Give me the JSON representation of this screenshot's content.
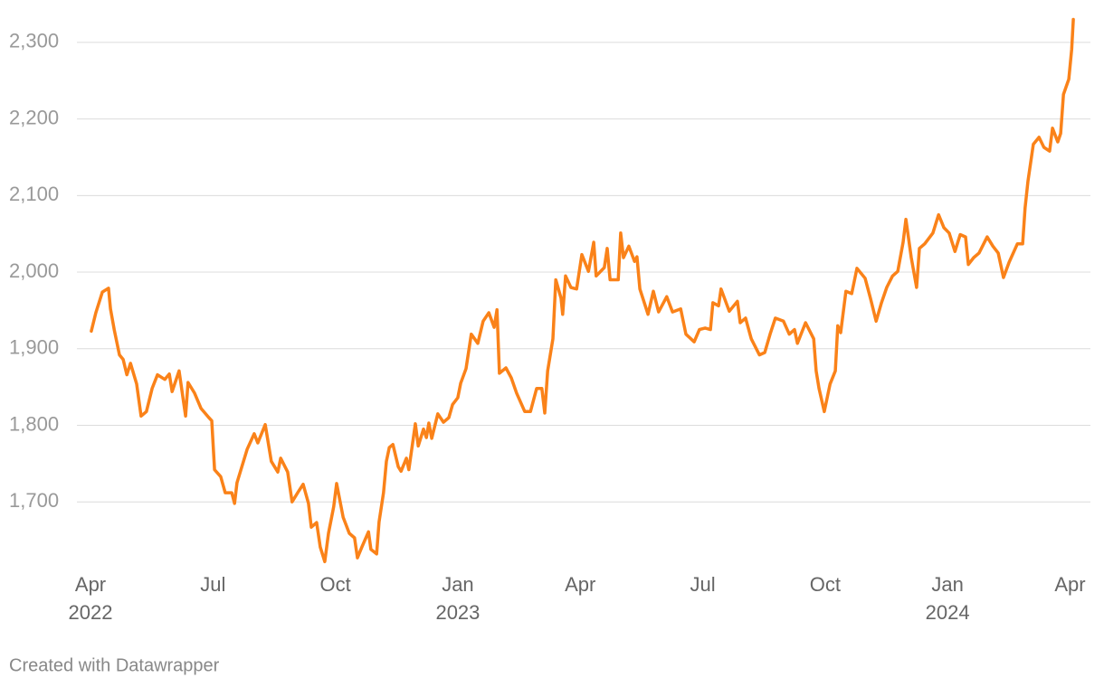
{
  "chart_data": {
    "type": "line",
    "footer": "Created with Datawrapper",
    "color": "#fa8219",
    "grid": true,
    "xlim": [
      -0.333,
      24.5
    ],
    "xticks": [
      {
        "value": 0,
        "label": "Apr",
        "sublabel": "2022"
      },
      {
        "value": 3,
        "label": "Jul"
      },
      {
        "value": 6,
        "label": "Oct"
      },
      {
        "value": 9,
        "label": "Jan",
        "sublabel": "2023"
      },
      {
        "value": 12,
        "label": "Apr"
      },
      {
        "value": 15,
        "label": "Jul"
      },
      {
        "value": 18,
        "label": "Oct"
      },
      {
        "value": 21,
        "label": "Jan",
        "sublabel": "2024"
      },
      {
        "value": 24,
        "label": "Apr"
      }
    ],
    "ylim": [
      1620,
      2340
    ],
    "yticks": [
      {
        "value": 1700,
        "label": "1,700"
      },
      {
        "value": 1800,
        "label": "1,800"
      },
      {
        "value": 1900,
        "label": "1,900"
      },
      {
        "value": 2000,
        "label": "2,000"
      },
      {
        "value": 2100,
        "label": "2,100"
      },
      {
        "value": 2200,
        "label": "2,200"
      },
      {
        "value": 2300,
        "label": "2,300"
      }
    ],
    "x": [
      0.02,
      0.13,
      0.29,
      0.44,
      0.49,
      0.58,
      0.71,
      0.8,
      0.89,
      0.98,
      1.13,
      1.24,
      1.37,
      1.51,
      1.64,
      1.82,
      1.93,
      2.0,
      2.17,
      2.33,
      2.39,
      2.55,
      2.71,
      2.9,
      2.97,
      3.04,
      3.19,
      3.3,
      3.46,
      3.53,
      3.59,
      3.75,
      3.84,
      4.01,
      4.1,
      4.28,
      4.43,
      4.59,
      4.66,
      4.83,
      4.94,
      5.1,
      5.21,
      5.34,
      5.41,
      5.54,
      5.63,
      5.74,
      5.83,
      5.96,
      6.03,
      6.19,
      6.34,
      6.47,
      6.54,
      6.65,
      6.81,
      6.87,
      7.01,
      7.07,
      7.18,
      7.25,
      7.32,
      7.41,
      7.54,
      7.61,
      7.74,
      7.8,
      7.96,
      8.03,
      8.16,
      8.23,
      8.29,
      8.36,
      8.51,
      8.65,
      8.78,
      8.87,
      9.0,
      9.07,
      9.2,
      9.33,
      9.49,
      9.62,
      9.76,
      9.89,
      9.96,
      10.02,
      10.18,
      10.31,
      10.44,
      10.64,
      10.78,
      10.93,
      11.06,
      11.13,
      11.2,
      11.33,
      11.4,
      11.53,
      11.57,
      11.64,
      11.77,
      11.91,
      12.04,
      12.2,
      12.33,
      12.39,
      12.59,
      12.66,
      12.73,
      12.93,
      12.99,
      13.06,
      13.19,
      13.33,
      13.39,
      13.46,
      13.66,
      13.79,
      13.92,
      14.12,
      14.26,
      14.46,
      14.59,
      14.79,
      14.92,
      15.06,
      15.19,
      15.25,
      15.39,
      15.45,
      15.65,
      15.85,
      15.92,
      16.05,
      16.19,
      16.39,
      16.52,
      16.65,
      16.78,
      16.98,
      17.12,
      17.25,
      17.32,
      17.52,
      17.72,
      17.78,
      17.85,
      17.98,
      18.12,
      18.25,
      18.31,
      18.38,
      18.51,
      18.65,
      18.78,
      18.98,
      19.11,
      19.25,
      19.38,
      19.51,
      19.65,
      19.78,
      19.91,
      19.98,
      20.11,
      20.24,
      20.31,
      20.44,
      20.64,
      20.78,
      20.91,
      21.04,
      21.18,
      21.31,
      21.44,
      21.51,
      21.64,
      21.77,
      21.97,
      22.11,
      22.24,
      22.37,
      22.51,
      22.71,
      22.84,
      22.9,
      22.97,
      23.1,
      23.24,
      23.36,
      23.5,
      23.57,
      23.7,
      23.77,
      23.84,
      23.97,
      24.04,
      24.08
    ],
    "values": [
      1923,
      1947,
      1974,
      1979,
      1952,
      1925,
      1892,
      1886,
      1866,
      1881,
      1854,
      1812,
      1818,
      1848,
      1866,
      1860,
      1867,
      1844,
      1871,
      1812,
      1856,
      1842,
      1822,
      1810,
      1806,
      1742,
      1733,
      1712,
      1712,
      1698,
      1725,
      1753,
      1769,
      1789,
      1777,
      1801,
      1753,
      1739,
      1757,
      1739,
      1700,
      1714,
      1723,
      1698,
      1667,
      1673,
      1641,
      1622,
      1659,
      1694,
      1724,
      1680,
      1659,
      1653,
      1627,
      1641,
      1661,
      1638,
      1632,
      1674,
      1712,
      1753,
      1771,
      1775,
      1746,
      1740,
      1757,
      1742,
      1802,
      1773,
      1795,
      1784,
      1803,
      1783,
      1815,
      1804,
      1810,
      1827,
      1836,
      1855,
      1874,
      1919,
      1907,
      1936,
      1947,
      1928,
      1951,
      1868,
      1875,
      1862,
      1842,
      1818,
      1818,
      1848,
      1848,
      1816,
      1871,
      1913,
      1990,
      1966,
      1945,
      1995,
      1980,
      1978,
      2023,
      2001,
      2039,
      1995,
      2006,
      2031,
      1990,
      1990,
      2051,
      2019,
      2034,
      2014,
      2020,
      1978,
      1945,
      1975,
      1948,
      1968,
      1948,
      1952,
      1919,
      1909,
      1925,
      1927,
      1925,
      1960,
      1956,
      1978,
      1949,
      1962,
      1934,
      1940,
      1913,
      1892,
      1895,
      1919,
      1940,
      1936,
      1919,
      1925,
      1907,
      1934,
      1913,
      1871,
      1848,
      1818,
      1854,
      1871,
      1930,
      1921,
      1975,
      1972,
      2005,
      1992,
      1966,
      1936,
      1960,
      1980,
      1995,
      2001,
      2039,
      2069,
      2019,
      1980,
      2031,
      2037,
      2051,
      2075,
      2058,
      2051,
      2027,
      2049,
      2046,
      2010,
      2019,
      2025,
      2046,
      2034,
      2025,
      1993,
      2013,
      2037,
      2037,
      2084,
      2119,
      2167,
      2176,
      2163,
      2158,
      2188,
      2170,
      2181,
      2232,
      2252,
      2291,
      2330
    ]
  }
}
